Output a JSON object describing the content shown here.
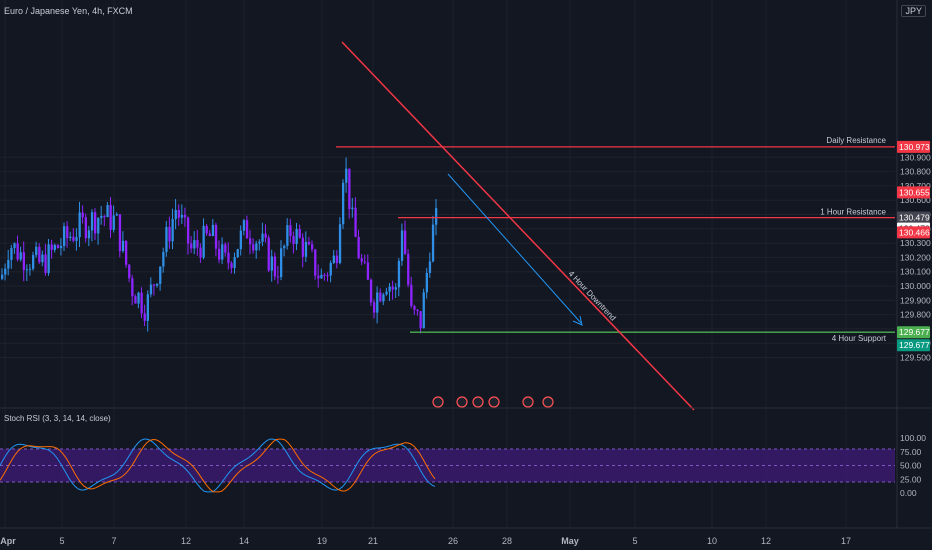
{
  "header": {
    "symbol_title": "Euro / Japanese Yen, 4h, FXCM",
    "currency": "JPY"
  },
  "price_axis": {
    "ticks": [
      "130.900",
      "130.800",
      "130.700",
      "130.600",
      "130.500",
      "130.400",
      "130.300",
      "130.200",
      "130.100",
      "130.000",
      "129.900",
      "129.800",
      "129.600",
      "129.500"
    ],
    "badges": [
      {
        "price": 130.973,
        "text": "130.973",
        "color": "#f23645"
      },
      {
        "price": 130.655,
        "text": "130.655",
        "color": "#f23645"
      },
      {
        "price": 130.479,
        "text": "130.479",
        "color": "#434651"
      },
      {
        "price": 130.478,
        "text": "130.478",
        "color": "#ffffff"
      },
      {
        "price": 130.466,
        "text": "130.466",
        "color": "#f23645"
      },
      {
        "price": 129.677,
        "text": "129.677",
        "color": "#4caf50"
      },
      {
        "price": 129.677,
        "text": "129.677",
        "color": "#089981"
      }
    ]
  },
  "annotations": {
    "daily_resistance": {
      "label": "Daily Resistance",
      "price": 130.973
    },
    "hour_resistance": {
      "label": "1 Hour Resistance",
      "price": 130.478
    },
    "hour_support": {
      "label": "4 Hour Support",
      "price": 129.677
    },
    "downtrend": {
      "label": "4 Hour Downtrend"
    }
  },
  "stoch": {
    "title": "Stoch RSI (3, 3, 14, 14, close)",
    "ticks": [
      "100.00",
      "75.00",
      "50.00",
      "25.00",
      "0.00"
    ],
    "upper_band": 80,
    "lower_band": 20
  },
  "time_axis": {
    "labels": [
      "Apr",
      "5",
      "7",
      "12",
      "14",
      "19",
      "21",
      "26",
      "28",
      "May",
      "5",
      "10",
      "12",
      "17"
    ]
  },
  "colors": {
    "background": "#131722",
    "bull": "#2f8fe6",
    "bear": "#8e24ff",
    "resistance": "#f23645",
    "support": "#4caf50",
    "stoch_k": "#2196f3",
    "stoch_d": "#ff6d00",
    "stoch_band_fill": "#3b1a73"
  }
}
